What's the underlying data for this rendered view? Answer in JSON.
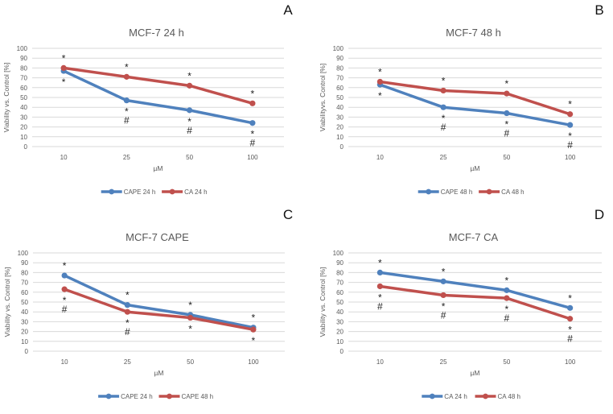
{
  "colors": {
    "blue": "#4f81bd",
    "red": "#c0504d",
    "grid": "#d9d9d9"
  },
  "chart_data": [
    {
      "type": "line",
      "panel_label": "A",
      "title": "MCF-7 24 h",
      "xlabel": "µM",
      "ylabel": "Viability vs. Control [%]",
      "categories": [
        "10",
        "25",
        "50",
        "100"
      ],
      "yticks": [
        "0",
        "10",
        "20",
        "30",
        "40",
        "50",
        "60",
        "70",
        "80",
        "90",
        "100"
      ],
      "ylim": [
        0,
        100
      ],
      "grid": true,
      "legend": "bottom",
      "series": [
        {
          "name": "CAPE 24 h",
          "color": "#4f81bd",
          "values": [
            77,
            47,
            37,
            24
          ],
          "annotations": [
            "*",
            "*#",
            "*#",
            "*#"
          ],
          "annotation_side": "below"
        },
        {
          "name": "CA 24 h",
          "color": "#c0504d",
          "values": [
            80,
            71,
            62,
            44
          ],
          "annotations": [
            "*",
            "*",
            "*",
            "*"
          ],
          "annotation_side": "above"
        }
      ]
    },
    {
      "type": "line",
      "panel_label": "B",
      "title": "MCF-7 48 h",
      "xlabel": "µM",
      "ylabel": "Viabilityvs. Control [%]",
      "categories": [
        "10",
        "25",
        "50",
        "100"
      ],
      "yticks": [
        "0",
        "10",
        "20",
        "30",
        "40",
        "50",
        "60",
        "70",
        "80",
        "90",
        "100"
      ],
      "ylim": [
        0,
        100
      ],
      "grid": true,
      "legend": "bottom",
      "series": [
        {
          "name": "CAPE 48 h",
          "color": "#4f81bd",
          "values": [
            63,
            40,
            34,
            22
          ],
          "annotations": [
            "*",
            "*#",
            "*#",
            "*#"
          ],
          "annotation_side": "below"
        },
        {
          "name": "CA 48 h",
          "color": "#c0504d",
          "values": [
            66,
            57,
            54,
            33
          ],
          "annotations": [
            "*",
            "*",
            "*",
            "*"
          ],
          "annotation_side": "above"
        }
      ]
    },
    {
      "type": "line",
      "panel_label": "C",
      "title": "MCF-7 CAPE",
      "xlabel": "µM",
      "ylabel": "Viability vs. Control [%]",
      "categories": [
        "10",
        "25",
        "50",
        "100"
      ],
      "yticks": [
        "0",
        "10",
        "20",
        "30",
        "40",
        "50",
        "60",
        "70",
        "80",
        "90",
        "100"
      ],
      "ylim": [
        0,
        100
      ],
      "grid": true,
      "legend": "bottom",
      "series": [
        {
          "name": "CAPE 24 h",
          "color": "#4f81bd",
          "values": [
            77,
            47,
            37,
            24
          ],
          "annotations": [
            "*",
            "*",
            "*",
            "*"
          ],
          "annotation_side": "above"
        },
        {
          "name": "CAPE 48 h",
          "color": "#c0504d",
          "values": [
            63,
            40,
            34,
            22
          ],
          "annotations": [
            "*#",
            "*#",
            "*",
            "*"
          ],
          "annotation_side": "below"
        }
      ]
    },
    {
      "type": "line",
      "panel_label": "D",
      "title": "MCF-7 CA",
      "xlabel": "µM",
      "ylabel": "Viability vs. Control [%]",
      "categories": [
        "10",
        "25",
        "50",
        "100"
      ],
      "yticks": [
        "0",
        "10",
        "20",
        "30",
        "40",
        "50",
        "60",
        "70",
        "80",
        "90",
        "100"
      ],
      "ylim": [
        0,
        100
      ],
      "grid": true,
      "legend": "bottom",
      "series": [
        {
          "name": "CA 24 h",
          "color": "#4f81bd",
          "values": [
            80,
            71,
            62,
            44
          ],
          "annotations": [
            "*",
            "*",
            "*",
            "*"
          ],
          "annotation_side": "above"
        },
        {
          "name": "CA 48 h",
          "color": "#c0504d",
          "values": [
            66,
            57,
            54,
            33
          ],
          "annotations": [
            "*#",
            "*#",
            "*#",
            "*#"
          ],
          "annotation_side": "below"
        }
      ]
    }
  ]
}
